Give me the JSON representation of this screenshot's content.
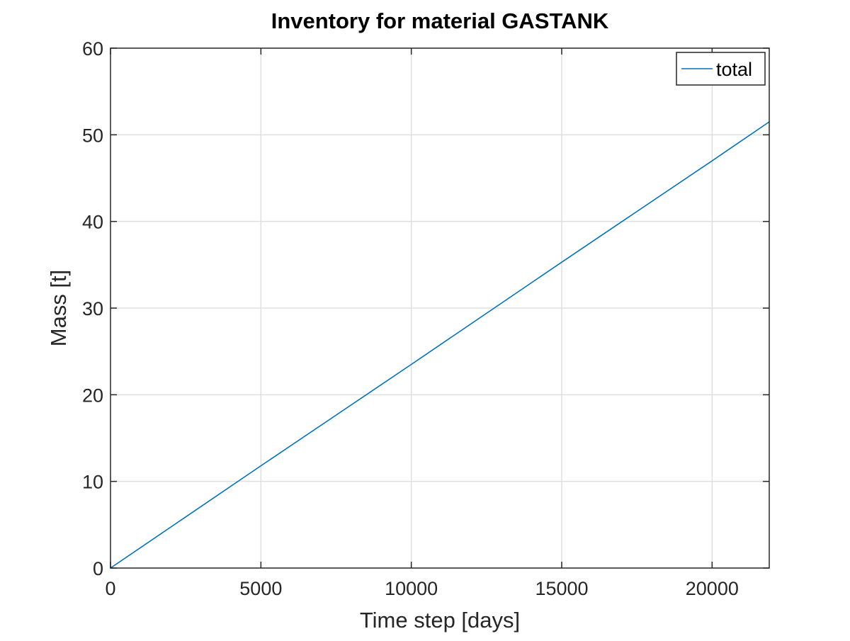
{
  "chart_data": {
    "type": "line",
    "title": "Inventory for material GASTANK",
    "xlabel": "Time step [days]",
    "ylabel": "Mass [t]",
    "xlim": [
      0,
      21900
    ],
    "ylim": [
      0,
      60
    ],
    "xticks": [
      0,
      5000,
      10000,
      15000,
      20000
    ],
    "yticks": [
      0,
      10,
      20,
      30,
      40,
      50,
      60
    ],
    "xtick_labels": [
      "0",
      "5000",
      "10000",
      "15000",
      "20000"
    ],
    "ytick_labels": [
      "0",
      "10",
      "20",
      "30",
      "40",
      "50",
      "60"
    ],
    "grid": true,
    "legend": {
      "position": "top-right",
      "entries": [
        "total"
      ]
    },
    "series": [
      {
        "name": "total",
        "color": "#0072BD",
        "x": [
          0,
          5000,
          10000,
          15000,
          20000,
          21900
        ],
        "y": [
          0,
          11.8,
          23.5,
          35.3,
          47.0,
          51.5
        ]
      }
    ]
  }
}
